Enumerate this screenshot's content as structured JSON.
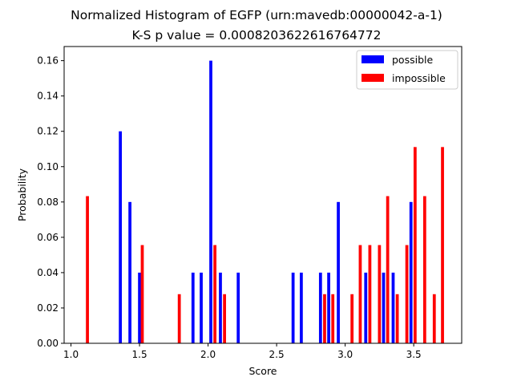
{
  "chart_data": {
    "type": "bar",
    "title": "Normalized Histogram of EGFP (urn:mavedb:00000042-a-1)",
    "subtitle": "K-S p value = 0.0008203622616764772",
    "xlabel": "Score",
    "ylabel": "Probability",
    "xlim": [
      0.95,
      3.85
    ],
    "ylim": [
      0,
      0.168
    ],
    "xticks": [
      1.0,
      1.5,
      2.0,
      2.5,
      3.0,
      3.5
    ],
    "xtick_labels": [
      "1.0",
      "1.5",
      "2.0",
      "2.5",
      "3.0",
      "3.5"
    ],
    "yticks": [
      0.0,
      0.02,
      0.04,
      0.06,
      0.08,
      0.1,
      0.12,
      0.14,
      0.16
    ],
    "ytick_labels": [
      "0.00",
      "0.02",
      "0.04",
      "0.06",
      "0.08",
      "0.10",
      "0.12",
      "0.14",
      "0.16"
    ],
    "bar_width": 0.022,
    "grid": false,
    "legend": {
      "position": "top-right"
    },
    "series": [
      {
        "name": "possible",
        "color": "#0000ff",
        "points": [
          {
            "x": 1.36,
            "y": 0.12
          },
          {
            "x": 1.43,
            "y": 0.08
          },
          {
            "x": 1.5,
            "y": 0.04
          },
          {
            "x": 1.89,
            "y": 0.04
          },
          {
            "x": 1.95,
            "y": 0.04
          },
          {
            "x": 2.02,
            "y": 0.16
          },
          {
            "x": 2.09,
            "y": 0.04
          },
          {
            "x": 2.22,
            "y": 0.04
          },
          {
            "x": 2.62,
            "y": 0.04
          },
          {
            "x": 2.68,
            "y": 0.04
          },
          {
            "x": 2.82,
            "y": 0.04
          },
          {
            "x": 2.88,
            "y": 0.04
          },
          {
            "x": 2.95,
            "y": 0.08
          },
          {
            "x": 3.15,
            "y": 0.04
          },
          {
            "x": 3.28,
            "y": 0.04
          },
          {
            "x": 3.35,
            "y": 0.04
          },
          {
            "x": 3.48,
            "y": 0.08
          }
        ]
      },
      {
        "name": "impossible",
        "color": "#ff0000",
        "points": [
          {
            "x": 1.12,
            "y": 0.0833
          },
          {
            "x": 1.52,
            "y": 0.0556
          },
          {
            "x": 1.79,
            "y": 0.0278
          },
          {
            "x": 2.05,
            "y": 0.0556
          },
          {
            "x": 2.12,
            "y": 0.0278
          },
          {
            "x": 2.85,
            "y": 0.0278
          },
          {
            "x": 2.91,
            "y": 0.0278
          },
          {
            "x": 3.05,
            "y": 0.0278
          },
          {
            "x": 3.11,
            "y": 0.0556
          },
          {
            "x": 3.18,
            "y": 0.0556
          },
          {
            "x": 3.25,
            "y": 0.0556
          },
          {
            "x": 3.31,
            "y": 0.0833
          },
          {
            "x": 3.38,
            "y": 0.0278
          },
          {
            "x": 3.45,
            "y": 0.0556
          },
          {
            "x": 3.51,
            "y": 0.1111
          },
          {
            "x": 3.58,
            "y": 0.0833
          },
          {
            "x": 3.65,
            "y": 0.0278
          },
          {
            "x": 3.71,
            "y": 0.1111
          }
        ]
      }
    ]
  }
}
